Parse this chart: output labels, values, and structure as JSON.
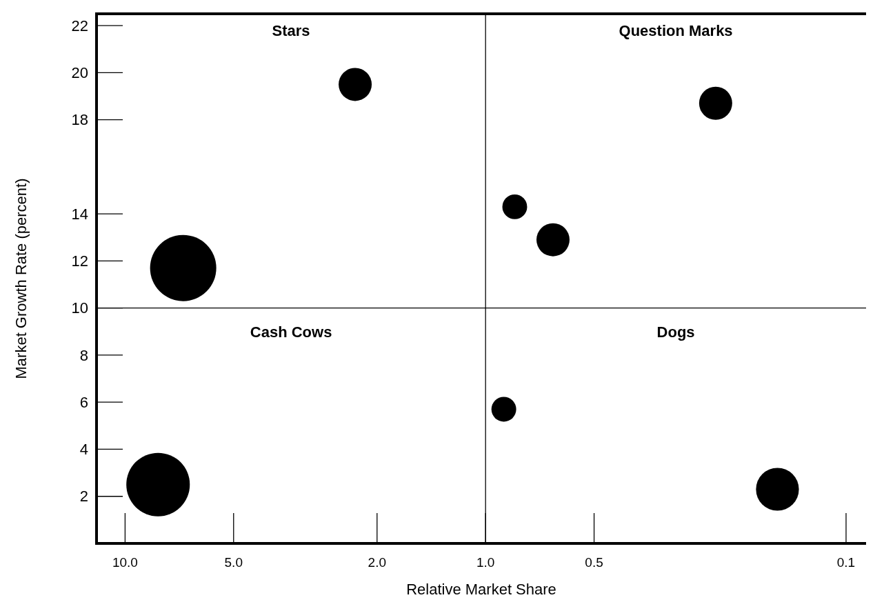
{
  "chart_data": {
    "type": "bubble",
    "xlabel": "Relative Market Share",
    "ylabel": "Market Growth Rate (percent)",
    "log": "x",
    "xlim": [
      12,
      0.088
    ],
    "xticks": [
      {
        "value": 10,
        "label": "10.0"
      },
      {
        "value": 5,
        "label": "5.0"
      },
      {
        "value": 2,
        "label": "2.0"
      },
      {
        "value": 1,
        "label": "1.0"
      },
      0.5,
      0.1
    ],
    "ylim": [
      0,
      22.5
    ],
    "yticks": [
      2,
      4,
      6,
      8,
      10,
      12,
      14,
      18,
      20,
      22
    ],
    "x": [
      2.3,
      6.9,
      8.1,
      0.23,
      0.83,
      0.65,
      0.89,
      0.155
    ],
    "values": [
      19.5,
      11.7,
      2.5,
      18.7,
      14.3,
      12.9,
      5.7,
      2.3
    ],
    "sizes": [
      0.25,
      1,
      0.92,
      0.25,
      0.14,
      0.25,
      0.14,
      0.42
    ],
    "color": "#000000",
    "grid": false,
    "ref_lines": [
      {
        "axis": "x",
        "value": 1
      },
      {
        "axis": "y",
        "value": 10
      }
    ],
    "annotations": [
      "Stars",
      "Question Marks",
      "Cash Cows",
      "Dogs"
    ]
  }
}
